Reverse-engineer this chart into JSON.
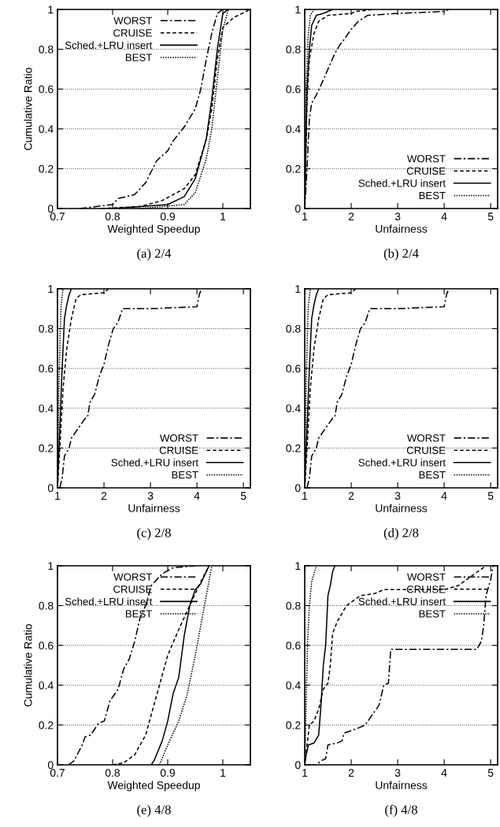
{
  "chart_data": [
    {
      "type": "line",
      "title": "(a) 2/4",
      "xlabel": "Weighted Speedup",
      "ylabel": "Cumulative Ratio",
      "xlim": [
        0.7,
        1.05
      ],
      "xticks": [
        0.7,
        0.8,
        0.9,
        1
      ],
      "ylim": [
        0,
        1
      ],
      "yticks": [
        0,
        0.2,
        0.4,
        0.6,
        0.8,
        1
      ],
      "grid": "y",
      "legend": "top left",
      "series": [
        {
          "name": "WORST",
          "color": "#000000",
          "line_style": "dashdot",
          "x": [
            0.74,
            0.8,
            0.81,
            0.84,
            0.86,
            0.88,
            0.9,
            0.91,
            0.93,
            0.95,
            0.96,
            0.97,
            0.98,
            0.99,
            1.0
          ],
          "values": [
            0,
            0.02,
            0.05,
            0.07,
            0.13,
            0.24,
            0.29,
            0.34,
            0.41,
            0.5,
            0.6,
            0.75,
            0.88,
            0.98,
            1.0
          ]
        },
        {
          "name": "CRUISE",
          "color": "#000000",
          "line_style": "dashed",
          "x": [
            0.78,
            0.85,
            0.89,
            0.93,
            0.95,
            0.97,
            0.98,
            0.99,
            1.0,
            1.02,
            1.05
          ],
          "values": [
            0,
            0.01,
            0.04,
            0.1,
            0.17,
            0.35,
            0.5,
            0.75,
            0.91,
            0.96,
            1.0
          ]
        },
        {
          "name": "Sched.+LRU insert",
          "color": "#000000",
          "line_style": "solid",
          "x": [
            0.8,
            0.9,
            0.93,
            0.95,
            0.97,
            0.98,
            0.99,
            1.0,
            1.01
          ],
          "values": [
            0,
            0.02,
            0.06,
            0.15,
            0.35,
            0.55,
            0.8,
            0.98,
            1.0
          ]
        },
        {
          "name": "BEST",
          "color": "#000000",
          "line_style": "dotted",
          "x": [
            0.85,
            0.93,
            0.95,
            0.97,
            0.98,
            0.99,
            1.0,
            1.01
          ],
          "values": [
            0,
            0.02,
            0.08,
            0.25,
            0.4,
            0.65,
            0.9,
            1.0
          ]
        }
      ]
    },
    {
      "type": "line",
      "title": "(b) 2/4",
      "xlabel": "Unfairness",
      "xlim": [
        1,
        5.15
      ],
      "xticks": [
        1,
        2,
        3,
        4,
        5
      ],
      "ylim": [
        0,
        1
      ],
      "yticks": [
        0,
        0.2,
        0.4,
        0.6,
        0.8,
        1
      ],
      "grid": "y",
      "legend": "bottom right",
      "series": [
        {
          "name": "WORST",
          "color": "#000000",
          "line_style": "dashdot",
          "x": [
            1.0,
            1.05,
            1.1,
            1.15,
            1.25,
            1.35,
            1.5,
            1.65,
            1.75,
            1.85,
            2.0,
            2.15,
            2.35,
            3.0,
            4.0,
            4.1
          ],
          "values": [
            0,
            0.2,
            0.45,
            0.53,
            0.57,
            0.62,
            0.7,
            0.78,
            0.82,
            0.85,
            0.9,
            0.94,
            0.97,
            0.98,
            0.99,
            1.0
          ]
        },
        {
          "name": "CRUISE",
          "color": "#000000",
          "line_style": "dashed",
          "x": [
            1.0,
            1.05,
            1.1,
            1.2,
            1.3,
            1.5,
            2.0,
            2.1,
            2.5
          ],
          "values": [
            0,
            0.55,
            0.75,
            0.88,
            0.94,
            0.97,
            0.98,
            0.99,
            1.0
          ]
        },
        {
          "name": "Sched.+LRU insert",
          "color": "#000000",
          "line_style": "solid",
          "x": [
            1.0,
            1.05,
            1.1,
            1.15,
            1.25,
            1.4,
            1.6
          ],
          "values": [
            0,
            0.6,
            0.8,
            0.92,
            0.97,
            0.98,
            1.0
          ]
        },
        {
          "name": "BEST",
          "color": "#000000",
          "line_style": "dotted",
          "x": [
            1.0,
            1.03,
            1.07,
            1.12,
            1.2
          ],
          "values": [
            0,
            0.6,
            0.85,
            0.97,
            1.0
          ]
        }
      ]
    },
    {
      "type": "line",
      "title": "(c) 2/8",
      "xlabel": "Unfairness",
      "xlim": [
        1,
        5.15
      ],
      "xticks": [
        1,
        2,
        3,
        4,
        5
      ],
      "ylim": [
        0,
        1
      ],
      "yticks": [
        0,
        0.2,
        0.4,
        0.6,
        0.8,
        1
      ],
      "grid": "y",
      "legend": "bottom right",
      "series": [
        {
          "name": "WORST",
          "color": "#000000",
          "line_style": "dashdot",
          "x": [
            1.05,
            1.1,
            1.15,
            1.25,
            1.3,
            1.45,
            1.6,
            1.65,
            1.7,
            1.8,
            1.9,
            2.0,
            2.1,
            2.2,
            2.3,
            2.4,
            3.0,
            4.0,
            4.05,
            4.1
          ],
          "values": [
            0,
            0.05,
            0.16,
            0.2,
            0.25,
            0.3,
            0.35,
            0.36,
            0.43,
            0.47,
            0.56,
            0.62,
            0.72,
            0.8,
            0.83,
            0.9,
            0.9,
            0.91,
            0.97,
            1.0
          ]
        },
        {
          "name": "CRUISE",
          "color": "#000000",
          "line_style": "dashed",
          "x": [
            1.0,
            1.05,
            1.12,
            1.2,
            1.3,
            1.4,
            1.5,
            2.0,
            2.1
          ],
          "values": [
            0,
            0.2,
            0.5,
            0.7,
            0.85,
            0.95,
            0.97,
            0.98,
            1.0
          ]
        },
        {
          "name": "Sched.+LRU insert",
          "color": "#000000",
          "line_style": "solid",
          "x": [
            1.0,
            1.05,
            1.1,
            1.15,
            1.2,
            1.25,
            1.3
          ],
          "values": [
            0,
            0.3,
            0.6,
            0.85,
            0.92,
            0.97,
            1.0
          ]
        },
        {
          "name": "BEST",
          "color": "#000000",
          "line_style": "dotted",
          "x": [
            1.0,
            1.03,
            1.06,
            1.08,
            1.12
          ],
          "values": [
            0,
            0.5,
            0.8,
            0.92,
            1.0
          ]
        }
      ]
    },
    {
      "type": "line",
      "title": "(d) 2/8",
      "xlabel": "Unfairness",
      "xlim": [
        1,
        5.15
      ],
      "xticks": [
        1,
        2,
        3,
        4,
        5
      ],
      "ylim": [
        0,
        1
      ],
      "yticks": [
        0,
        0.2,
        0.4,
        0.6,
        0.8,
        1
      ],
      "grid": "y",
      "legend": "bottom right",
      "series": [
        {
          "name": "WORST",
          "color": "#000000",
          "line_style": "dashdot",
          "x": [
            1.05,
            1.1,
            1.15,
            1.25,
            1.3,
            1.45,
            1.6,
            1.65,
            1.7,
            1.8,
            1.9,
            2.0,
            2.1,
            2.2,
            2.3,
            2.4,
            3.0,
            4.0,
            4.05,
            4.1
          ],
          "values": [
            0,
            0.05,
            0.16,
            0.2,
            0.25,
            0.3,
            0.35,
            0.36,
            0.43,
            0.47,
            0.56,
            0.62,
            0.72,
            0.8,
            0.83,
            0.9,
            0.9,
            0.91,
            0.97,
            1.0
          ]
        },
        {
          "name": "CRUISE",
          "color": "#000000",
          "line_style": "dashed",
          "x": [
            1.0,
            1.05,
            1.12,
            1.2,
            1.3,
            1.4,
            1.5,
            2.0,
            2.1
          ],
          "values": [
            0,
            0.2,
            0.5,
            0.7,
            0.85,
            0.95,
            0.97,
            0.98,
            1.0
          ]
        },
        {
          "name": "Sched.+LRU insert",
          "color": "#000000",
          "line_style": "solid",
          "x": [
            1.0,
            1.05,
            1.1,
            1.15,
            1.2,
            1.25,
            1.3
          ],
          "values": [
            0,
            0.3,
            0.6,
            0.85,
            0.92,
            0.97,
            1.0
          ]
        },
        {
          "name": "BEST",
          "color": "#000000",
          "line_style": "dotted",
          "x": [
            1.0,
            1.03,
            1.06,
            1.08,
            1.12
          ],
          "values": [
            0,
            0.5,
            0.8,
            0.92,
            1.0
          ]
        }
      ]
    },
    {
      "type": "line",
      "title": "(e) 4/8",
      "xlabel": "Weighted Speedup",
      "ylabel": "Cumulative Ratio",
      "xlim": [
        0.7,
        1.05
      ],
      "xticks": [
        0.7,
        0.8,
        0.9,
        1
      ],
      "ylim": [
        0,
        1
      ],
      "yticks": [
        0,
        0.2,
        0.4,
        0.6,
        0.8,
        1
      ],
      "grid": "y",
      "legend": "top left",
      "series": [
        {
          "name": "WORST",
          "color": "#000000",
          "line_style": "dashdot",
          "x": [
            0.72,
            0.73,
            0.745,
            0.75,
            0.76,
            0.775,
            0.785,
            0.795,
            0.81,
            0.82,
            0.83,
            0.84,
            0.85,
            0.86,
            0.87,
            0.89,
            0.91,
            0.95
          ],
          "values": [
            0,
            0.02,
            0.1,
            0.14,
            0.15,
            0.21,
            0.22,
            0.32,
            0.38,
            0.48,
            0.53,
            0.62,
            0.74,
            0.8,
            0.9,
            0.96,
            0.99,
            1.0
          ]
        },
        {
          "name": "CRUISE",
          "color": "#000000",
          "line_style": "dashed",
          "x": [
            0.8,
            0.82,
            0.84,
            0.86,
            0.87,
            0.88,
            0.89,
            0.9,
            0.92,
            0.94,
            0.96,
            0.975
          ],
          "values": [
            0,
            0.01,
            0.05,
            0.15,
            0.25,
            0.35,
            0.45,
            0.55,
            0.68,
            0.8,
            0.92,
            1.0
          ]
        },
        {
          "name": "Sched.+LRU insert",
          "color": "#000000",
          "line_style": "solid",
          "x": [
            0.87,
            0.875,
            0.89,
            0.9,
            0.91,
            0.92,
            0.93,
            0.94,
            0.95,
            0.96,
            0.975
          ],
          "values": [
            0,
            0.02,
            0.12,
            0.22,
            0.36,
            0.44,
            0.65,
            0.8,
            0.88,
            0.91,
            1.0
          ]
        },
        {
          "name": "BEST",
          "color": "#000000",
          "line_style": "dotted",
          "x": [
            0.885,
            0.9,
            0.92,
            0.935,
            0.95,
            0.96,
            0.97,
            0.98
          ],
          "values": [
            0,
            0.1,
            0.22,
            0.35,
            0.55,
            0.7,
            0.85,
            1.0
          ]
        }
      ]
    },
    {
      "type": "line",
      "title": "(f) 4/8",
      "xlabel": "Unfairness",
      "xlim": [
        1,
        5.15
      ],
      "xticks": [
        1,
        2,
        3,
        4,
        5
      ],
      "ylim": [
        0,
        1
      ],
      "yticks": [
        0,
        0.2,
        0.4,
        0.6,
        0.8,
        1
      ],
      "grid": "y",
      "legend": "top right",
      "series": [
        {
          "name": "WORST",
          "color": "#000000",
          "line_style": "dashdot",
          "x": [
            1.1,
            1.25,
            1.35,
            1.45,
            1.5,
            1.7,
            1.8,
            1.85,
            2.1,
            2.3,
            2.45,
            2.6,
            2.7,
            2.8,
            2.85,
            3.0,
            4.0,
            4.7,
            4.8,
            4.85,
            4.9,
            5.0,
            5.05
          ],
          "values": [
            0,
            0,
            0.02,
            0.03,
            0.1,
            0.11,
            0.12,
            0.16,
            0.18,
            0.2,
            0.25,
            0.3,
            0.4,
            0.41,
            0.58,
            0.58,
            0.58,
            0.58,
            0.62,
            0.7,
            0.85,
            0.93,
            1.0
          ]
        },
        {
          "name": "CRUISE",
          "color": "#000000",
          "line_style": "dashed",
          "x": [
            1.0,
            1.05,
            1.1,
            1.2,
            1.3,
            1.4,
            1.5,
            1.55,
            1.6,
            1.7,
            1.9,
            2.2,
            2.5,
            2.7,
            3.5,
            4.0,
            4.3,
            4.6,
            4.9
          ],
          "values": [
            0,
            0.1,
            0.2,
            0.22,
            0.28,
            0.38,
            0.41,
            0.5,
            0.66,
            0.72,
            0.8,
            0.85,
            0.86,
            0.88,
            0.88,
            0.88,
            0.9,
            0.95,
            1.0
          ]
        },
        {
          "name": "Sched.+LRU insert",
          "color": "#000000",
          "line_style": "solid",
          "x": [
            1.0,
            1.03,
            1.08,
            1.2,
            1.3,
            1.35,
            1.4,
            1.45,
            1.5,
            1.55,
            1.6,
            1.65
          ],
          "values": [
            0,
            0.05,
            0.1,
            0.11,
            0.15,
            0.3,
            0.5,
            0.6,
            0.85,
            0.9,
            0.97,
            1.0
          ]
        },
        {
          "name": "BEST",
          "color": "#000000",
          "line_style": "dotted",
          "x": [
            1.0,
            1.03,
            1.06,
            1.1,
            1.15,
            1.25
          ],
          "values": [
            0,
            0.3,
            0.6,
            0.8,
            0.92,
            1.0
          ]
        }
      ]
    }
  ]
}
